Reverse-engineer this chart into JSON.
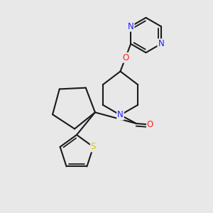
{
  "bg": "#e8e8e8",
  "col_N": "#2020ff",
  "col_O": "#ff2020",
  "col_S": "#cccc00",
  "col_bond": "#1a1a1a",
  "bw": 1.5,
  "dbo": 0.012,
  "fs": 8.5,
  "xlim": [
    0.0,
    1.0
  ],
  "ylim": [
    0.0,
    1.0
  ]
}
